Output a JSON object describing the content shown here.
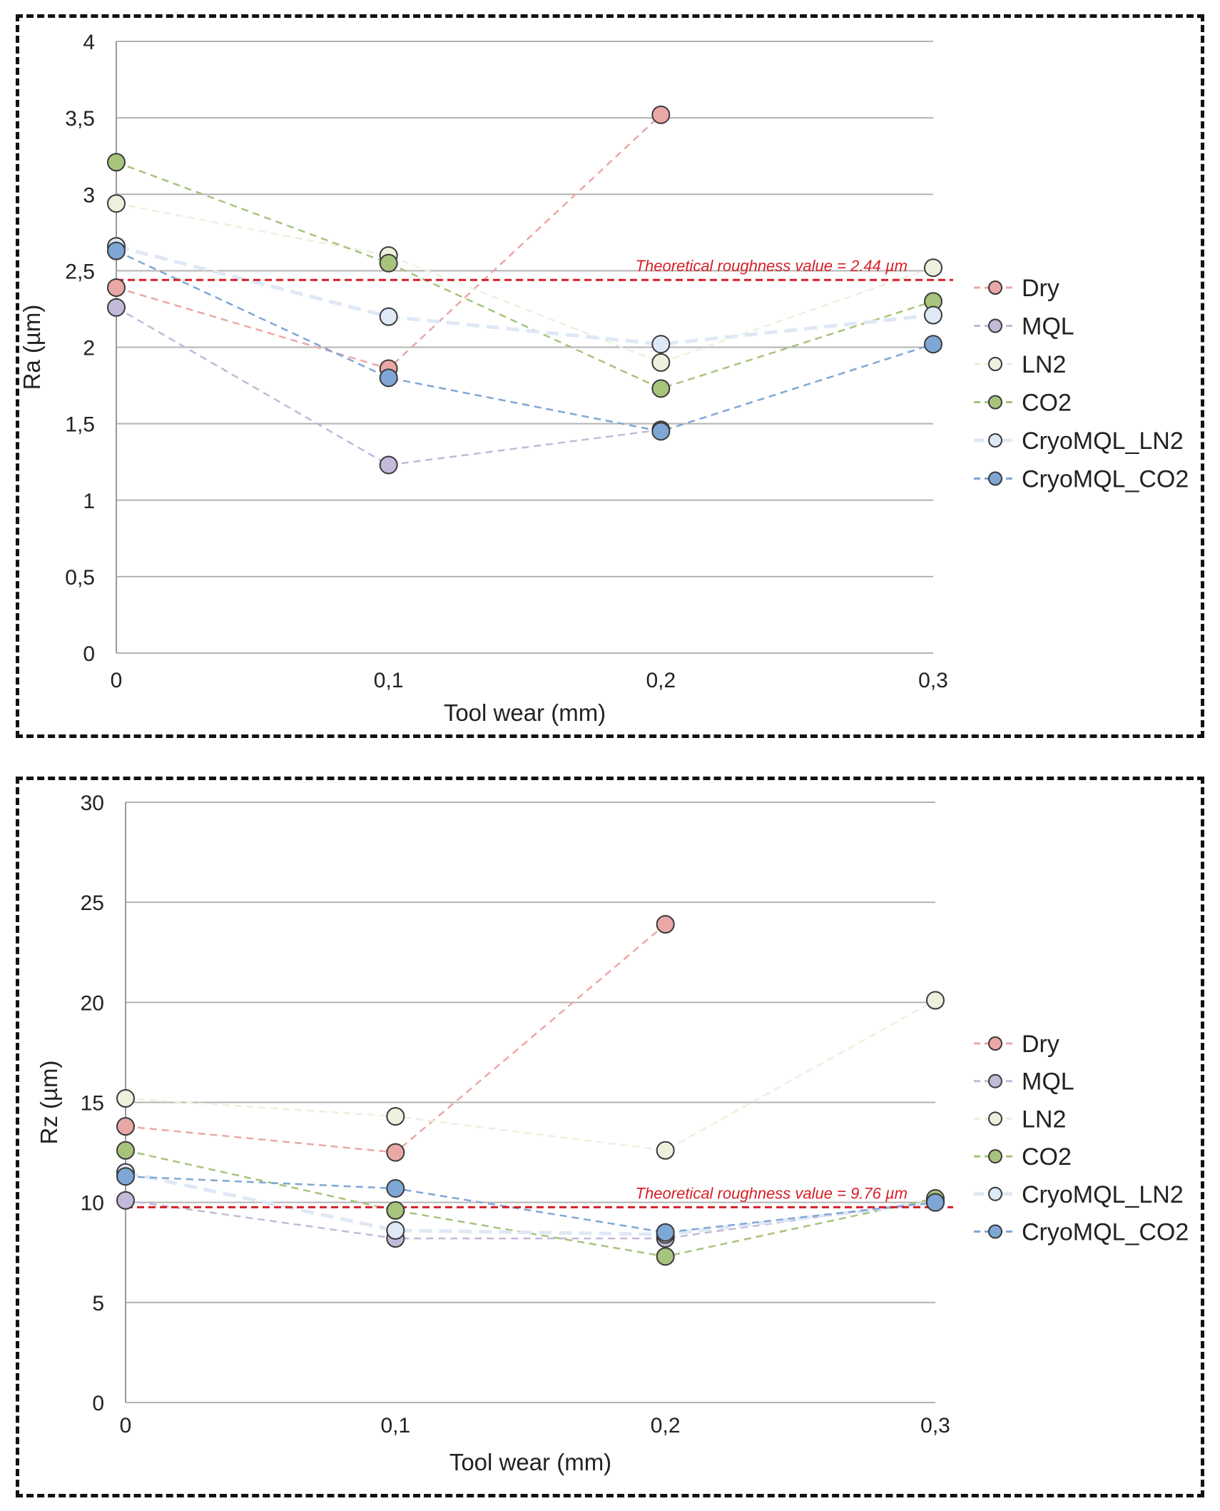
{
  "colors": {
    "Dry": "#e9a8a6",
    "MQL": "#c3b9d8",
    "LN2": "#ecf0dc",
    "CO2": "#a7c47c",
    "CryoMQL_LN2": "#dfe8f5",
    "CryoMQL_CO2": "#7fa7d6",
    "reference": "#d61f26",
    "grid": "#b3b3b3"
  },
  "chart_data": [
    {
      "id": "ra",
      "type": "line",
      "x": [
        0,
        0.1,
        0.2,
        0.3
      ],
      "x_tick_labels": [
        "0",
        "0,1",
        "0,2",
        "0,3"
      ],
      "xlabel": "Tool wear (mm)",
      "ylabel": "Ra (µm)",
      "ylim": [
        0,
        4
      ],
      "y_ticks": [
        0,
        0.5,
        1,
        1.5,
        2,
        2.5,
        3,
        3.5,
        4
      ],
      "y_tick_labels": [
        "0",
        "0,5",
        "1",
        "1,5",
        "2",
        "2,5",
        "3",
        "3,5",
        "4"
      ],
      "grid": true,
      "legend_position": "right",
      "reference_line": {
        "value": 2.44,
        "label": "Theoretical roughness value = 2.44 µm"
      },
      "series": [
        {
          "name": "Dry",
          "values": [
            2.39,
            1.86,
            3.52,
            null
          ]
        },
        {
          "name": "MQL",
          "values": [
            2.26,
            1.23,
            1.46,
            null
          ]
        },
        {
          "name": "LN2",
          "values": [
            2.94,
            2.6,
            1.9,
            2.52
          ]
        },
        {
          "name": "CO2",
          "values": [
            3.21,
            2.55,
            1.73,
            2.3
          ]
        },
        {
          "name": "CryoMQL_LN2",
          "values": [
            2.66,
            2.2,
            2.02,
            2.21
          ]
        },
        {
          "name": "CryoMQL_CO2",
          "values": [
            2.63,
            1.8,
            1.45,
            2.02
          ]
        }
      ]
    },
    {
      "id": "rz",
      "type": "line",
      "x": [
        0,
        0.1,
        0.2,
        0.3
      ],
      "x_tick_labels": [
        "0",
        "0,1",
        "0,2",
        "0,3"
      ],
      "xlabel": "Tool wear (mm)",
      "ylabel": "Rz (µm)",
      "ylim": [
        0,
        30
      ],
      "y_ticks": [
        0,
        5,
        10,
        15,
        20,
        25,
        30
      ],
      "y_tick_labels": [
        "0",
        "5",
        "10",
        "15",
        "20",
        "25",
        "30"
      ],
      "grid": true,
      "legend_position": "right",
      "reference_line": {
        "value": 9.76,
        "label": "Theoretical roughness value = 9.76 µm"
      },
      "series": [
        {
          "name": "Dry",
          "values": [
            13.8,
            12.5,
            23.9,
            null
          ]
        },
        {
          "name": "MQL",
          "values": [
            10.1,
            8.2,
            8.2,
            10.1
          ]
        },
        {
          "name": "LN2",
          "values": [
            15.2,
            14.3,
            12.6,
            20.1
          ]
        },
        {
          "name": "CO2",
          "values": [
            12.6,
            9.6,
            7.3,
            10.2
          ]
        },
        {
          "name": "CryoMQL_LN2",
          "values": [
            11.5,
            8.6,
            8.4,
            10.0
          ]
        },
        {
          "name": "CryoMQL_CO2",
          "values": [
            11.3,
            10.7,
            8.5,
            10.0
          ]
        }
      ]
    }
  ]
}
